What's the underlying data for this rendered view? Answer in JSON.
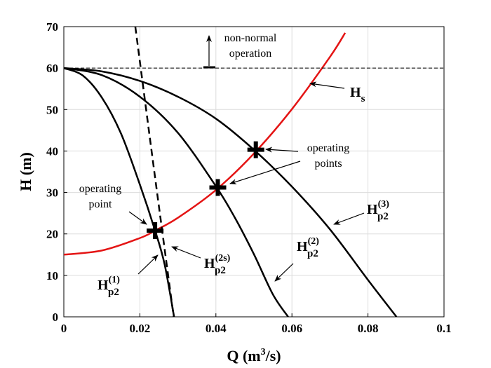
{
  "chart_data": {
    "type": "line",
    "xlabel_parts": {
      "main": "Q (m",
      "sup": "3",
      "end": "/s)"
    },
    "ylabel": "H (m)",
    "xlim": [
      0,
      0.1
    ],
    "ylim": [
      0,
      70
    ],
    "x_ticks": [
      0,
      0.02,
      0.04,
      0.06,
      0.08,
      0.1
    ],
    "x_tick_labels": [
      "0",
      "0.02",
      "0.04",
      "0.06",
      "0.08",
      "0.1"
    ],
    "y_ticks": [
      0,
      10,
      20,
      30,
      40,
      50,
      60,
      70
    ],
    "y_tick_labels": [
      "0",
      "10",
      "20",
      "30",
      "40",
      "50",
      "60",
      "70"
    ],
    "grid": true,
    "colors": {
      "system": "#e41414",
      "pump": "#000000",
      "grid": "#dcdcdc"
    },
    "series": [
      {
        "key": "Hs",
        "style": "solid-red",
        "x": [
          0,
          0.01,
          0.02,
          0.024,
          0.03,
          0.04,
          0.05,
          0.06,
          0.07,
          0.074
        ],
        "y": [
          15,
          16.0,
          19.0,
          20.8,
          23.9,
          30.6,
          39.4,
          50.1,
          62.7,
          68.5
        ]
      },
      {
        "key": "Hp2_1",
        "style": "solid-black",
        "x": [
          0,
          0.005,
          0.01,
          0.015,
          0.02,
          0.024,
          0.0265,
          0.029
        ],
        "y": [
          60,
          58.2,
          52.9,
          44.3,
          31.9,
          20.8,
          12.7,
          0
        ]
      },
      {
        "key": "Hp2_2",
        "style": "solid-black",
        "x": [
          0,
          0.01,
          0.02,
          0.03,
          0.04,
          0.045,
          0.05,
          0.055,
          0.059
        ],
        "y": [
          60,
          58.3,
          53.1,
          44.4,
          31.5,
          23.9,
          15.1,
          5.4,
          0
        ]
      },
      {
        "key": "Hp2_3",
        "style": "solid-black",
        "x": [
          0,
          0.01,
          0.02,
          0.03,
          0.04,
          0.05,
          0.06,
          0.07,
          0.08,
          0.0875
        ],
        "y": [
          60,
          59.2,
          56.9,
          53.1,
          47.8,
          40.3,
          31.4,
          21.1,
          8.9,
          0
        ]
      },
      {
        "key": "Hp2_2s",
        "style": "dashed-black",
        "x": [
          0.0188,
          0.0238,
          0.0289
        ],
        "y": [
          70,
          35,
          0
        ]
      },
      {
        "key": "limit",
        "style": "thin-dashed-black",
        "x": [
          0,
          0.1
        ],
        "y": [
          60,
          60
        ]
      }
    ],
    "operating_points": [
      {
        "x": 0.024,
        "y": 20.8
      },
      {
        "x": 0.0405,
        "y": 31.2
      },
      {
        "x": 0.0505,
        "y": 40.3
      }
    ],
    "labels": {
      "hs": {
        "main": "H",
        "sub": "s"
      },
      "hp2_1": {
        "main": "H",
        "sup": "(1)",
        "sub": "p2"
      },
      "hp2_2": {
        "main": "H",
        "sup": "(2)",
        "sub": "p2"
      },
      "hp2_3": {
        "main": "H",
        "sup": "(3)",
        "sub": "p2"
      },
      "hp2_2s": {
        "main": "H",
        "sup": "(2s)",
        "sub": "p2"
      }
    },
    "annotations": {
      "non_normal_1": "non-normal",
      "non_normal_2": "operation",
      "op_points_1": "operating",
      "op_points_2": "points",
      "op_point_1": "operating",
      "op_point_2": "point"
    }
  }
}
